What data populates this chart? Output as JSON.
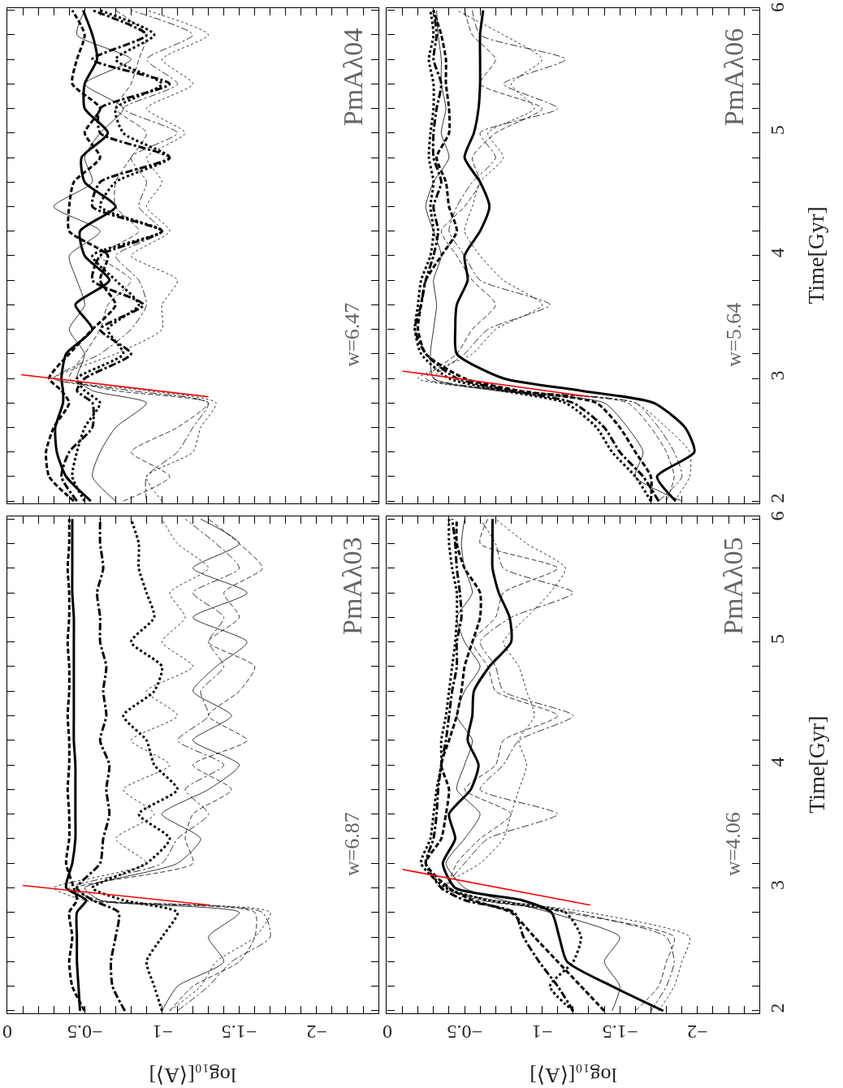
{
  "chart_data": [
    {
      "type": "line",
      "orientation": "horizontal",
      "tick_labels": false,
      "annotations": [
        "PmAλ04",
        "w=6.47"
      ],
      "xlim": [
        0,
        -2.4
      ],
      "ylim": [
        1.98,
        6.02
      ],
      "xticks": [
        {
          "value": 0,
          "label": null
        },
        {
          "value": -0.1,
          "label": null
        },
        {
          "value": -0.2,
          "label": null
        },
        {
          "value": -0.3,
          "label": null
        },
        {
          "value": -0.4,
          "label": null
        },
        {
          "value": -0.5,
          "label": null
        },
        {
          "value": -0.6,
          "label": null
        },
        {
          "value": -0.7,
          "label": null
        },
        {
          "value": -0.8,
          "label": null
        },
        {
          "value": -0.9,
          "label": null
        },
        {
          "value": -1,
          "label": null
        },
        {
          "value": -1.1,
          "label": null
        },
        {
          "value": -1.2,
          "label": null
        },
        {
          "value": -1.3,
          "label": null
        },
        {
          "value": -1.4,
          "label": null
        },
        {
          "value": -1.5,
          "label": null
        },
        {
          "value": -1.6,
          "label": null
        },
        {
          "value": -1.7,
          "label": null
        },
        {
          "value": -1.8,
          "label": null
        },
        {
          "value": -1.9,
          "label": null
        },
        {
          "value": -2,
          "label": null
        },
        {
          "value": -2.1,
          "label": null
        },
        {
          "value": -2.2,
          "label": null
        },
        {
          "value": -2.3,
          "label": null
        }
      ],
      "yticks": [
        2,
        {
          "value": 2.2,
          "label": null
        },
        {
          "value": 2.4,
          "label": null
        },
        {
          "value": 2.6,
          "label": null
        },
        {
          "value": 2.8,
          "label": null
        },
        3,
        {
          "value": 3.2,
          "label": null
        },
        {
          "value": 3.4,
          "label": null
        },
        {
          "value": 3.6,
          "label": null
        },
        {
          "value": 3.8,
          "label": null
        },
        4,
        {
          "value": 4.2,
          "label": null
        },
        {
          "value": 4.4,
          "label": null
        },
        {
          "value": 4.6,
          "label": null
        },
        {
          "value": 4.8,
          "label": null
        },
        5,
        {
          "value": 5.2,
          "label": null
        },
        {
          "value": 5.4,
          "label": null
        },
        {
          "value": 5.6,
          "label": null
        },
        {
          "value": 5.8,
          "label": null
        },
        6
      ],
      "x": [
        2.0,
        2.2,
        2.4,
        2.6,
        2.8,
        2.9,
        3.0,
        3.2,
        3.4,
        3.6,
        3.8,
        4.0,
        4.2,
        4.4,
        4.6,
        4.8,
        5.0,
        5.2,
        5.4,
        5.6,
        5.8,
        6.0
      ],
      "series": [
        {
          "color": "#000000",
          "line_style": "solid",
          "values": [
            -0.54,
            -0.38,
            -0.32,
            -0.31,
            -0.36,
            -0.36,
            -0.35,
            -0.38,
            -0.55,
            -0.44,
            -0.66,
            -0.5,
            -0.47,
            -0.7,
            -0.5,
            -0.48,
            -0.65,
            -0.5,
            -0.5,
            -0.58,
            -0.55,
            -0.49
          ]
        },
        {
          "color": "#000000",
          "line_style": "dashed",
          "values": [
            -0.43,
            -0.27,
            -0.25,
            -0.3,
            -0.4,
            -0.35,
            -0.27,
            -0.4,
            -0.55,
            -0.7,
            -0.6,
            -0.65,
            -0.4,
            -0.4,
            -0.43,
            -0.6,
            -0.5,
            -0.6,
            -0.42,
            -0.45,
            -0.5,
            -0.42
          ]
        },
        {
          "color": "#000000",
          "line_style": "dashdot",
          "values": [
            -0.45,
            -0.35,
            -0.4,
            -0.55,
            -0.55,
            -0.45,
            -0.5,
            -0.8,
            -0.6,
            -0.88,
            -0.55,
            -0.6,
            -1.0,
            -0.55,
            -0.6,
            -1.05,
            -0.6,
            -0.6,
            -1.05,
            -0.55,
            -0.9,
            -0.55
          ]
        },
        {
          "color": "#000000",
          "line_style": "dotted",
          "values": [
            -0.5,
            -0.42,
            -0.45,
            -0.5,
            -0.6,
            -0.5,
            -0.45,
            -0.75,
            -0.65,
            -0.85,
            -0.7,
            -0.55,
            -1.0,
            -0.6,
            -0.7,
            -1.05,
            -0.75,
            -0.7,
            -1.0,
            -0.7,
            -0.95,
            -0.6
          ]
        },
        {
          "color": "#000000",
          "line_style": "solid",
          "values": [
            -0.7,
            -0.55,
            -0.6,
            -0.7,
            -0.9,
            -0.55,
            -0.45,
            -0.5,
            -0.4,
            -0.5,
            -0.45,
            -0.4,
            -0.6,
            -0.3,
            -0.55,
            -0.5,
            -0.6,
            -0.75,
            -0.5,
            -0.8,
            -0.45,
            -0.5
          ]
        },
        {
          "color": "#000000",
          "line_style": "dashed",
          "values": [
            -0.75,
            -1.05,
            -0.8,
            -1.1,
            -1.3,
            -0.7,
            -0.4,
            -0.5,
            -0.6,
            -0.65,
            -0.8,
            -0.6,
            -0.85,
            -0.7,
            -0.7,
            -0.8,
            -0.9,
            -0.7,
            -0.8,
            -0.85,
            -0.9,
            -0.7
          ]
        },
        {
          "color": "#000000",
          "line_style": "dashdot",
          "values": [
            -0.9,
            -0.9,
            -1.1,
            -1.2,
            -1.3,
            -0.8,
            -0.3,
            -0.6,
            -0.8,
            -0.9,
            -0.85,
            -0.7,
            -1.0,
            -0.85,
            -0.9,
            -0.8,
            -1.1,
            -0.75,
            -1.1,
            -0.9,
            -1.2,
            -0.8
          ]
        },
        {
          "color": "#000000",
          "line_style": "dotted",
          "values": [
            -1.0,
            -0.9,
            -1.2,
            -1.25,
            -1.35,
            -0.9,
            -0.3,
            -0.7,
            -1.0,
            -1.0,
            -1.1,
            -0.8,
            -1.05,
            -0.9,
            -1.0,
            -0.9,
            -1.15,
            -0.9,
            -1.2,
            -1.0,
            -1.3,
            -0.9
          ]
        },
        {
          "color": "#ff0000",
          "line_style": "solid",
          "x": [
            2.85,
            3.03
          ],
          "values": [
            -1.3,
            -0.09
          ]
        }
      ]
    },
    {
      "type": "line",
      "orientation": "horizontal",
      "tick_labels": "y",
      "ylabel": "Time[Gyr]",
      "annotations": [
        "PmAλ06",
        "w=5.64"
      ],
      "xlim": [
        0,
        -2.4
      ],
      "ylim": [
        1.98,
        6.02
      ],
      "xticks": [
        {
          "value": 0,
          "label": null
        },
        {
          "value": -0.1,
          "label": null
        },
        {
          "value": -0.2,
          "label": null
        },
        {
          "value": -0.3,
          "label": null
        },
        {
          "value": -0.4,
          "label": null
        },
        {
          "value": -0.5,
          "label": null
        },
        {
          "value": -0.6,
          "label": null
        },
        {
          "value": -0.7,
          "label": null
        },
        {
          "value": -0.8,
          "label": null
        },
        {
          "value": -0.9,
          "label": null
        },
        {
          "value": -1,
          "label": null
        },
        {
          "value": -1.1,
          "label": null
        },
        {
          "value": -1.2,
          "label": null
        },
        {
          "value": -1.3,
          "label": null
        },
        {
          "value": -1.4,
          "label": null
        },
        {
          "value": -1.5,
          "label": null
        },
        {
          "value": -1.6,
          "label": null
        },
        {
          "value": -1.7,
          "label": null
        },
        {
          "value": -1.8,
          "label": null
        },
        {
          "value": -1.9,
          "label": null
        },
        {
          "value": -2,
          "label": null
        },
        {
          "value": -2.1,
          "label": null
        },
        {
          "value": -2.2,
          "label": null
        },
        {
          "value": -2.3,
          "label": null
        }
      ],
      "yticks": [
        2,
        {
          "value": 2.2,
          "label": null
        },
        {
          "value": 2.4,
          "label": null
        },
        {
          "value": 2.6,
          "label": null
        },
        {
          "value": 2.8,
          "label": null
        },
        3,
        {
          "value": 3.2,
          "label": null
        },
        {
          "value": 3.4,
          "label": null
        },
        {
          "value": 3.6,
          "label": null
        },
        {
          "value": 3.8,
          "label": null
        },
        4,
        {
          "value": 4.2,
          "label": null
        },
        {
          "value": 4.4,
          "label": null
        },
        {
          "value": 4.6,
          "label": null
        },
        {
          "value": 4.8,
          "label": null
        },
        5,
        {
          "value": 5.2,
          "label": null
        },
        {
          "value": 5.4,
          "label": null
        },
        {
          "value": 5.6,
          "label": null
        },
        {
          "value": 5.8,
          "label": null
        },
        6
      ],
      "x": [
        2.0,
        2.2,
        2.4,
        2.6,
        2.8,
        2.9,
        3.0,
        3.2,
        3.4,
        3.6,
        3.8,
        4.0,
        4.2,
        4.4,
        4.6,
        4.8,
        5.0,
        5.2,
        5.4,
        5.6,
        5.8,
        6.0
      ],
      "series": [
        {
          "color": "#000000",
          "line_style": "solid",
          "values": [
            -1.86,
            -1.74,
            -1.98,
            -1.92,
            -1.72,
            -1.25,
            -0.75,
            -0.45,
            -0.44,
            -0.45,
            -0.52,
            -0.5,
            -0.6,
            -0.66,
            -0.6,
            -0.5,
            -0.56,
            -0.59,
            -0.6,
            -0.6,
            -0.6,
            -0.62
          ]
        },
        {
          "color": "#000000",
          "line_style": "dashed",
          "values": [
            -1.7,
            -1.7,
            -1.6,
            -1.5,
            -1.35,
            -0.85,
            -0.5,
            -0.25,
            -0.2,
            -0.22,
            -0.25,
            -0.35,
            -0.45,
            -0.4,
            -0.38,
            -0.32,
            -0.4,
            -0.4,
            -0.38,
            -0.38,
            -0.35,
            -0.3
          ]
        },
        {
          "color": "#000000",
          "line_style": "dashdot",
          "values": [
            -1.75,
            -1.65,
            -1.5,
            -1.4,
            -1.2,
            -0.8,
            -0.45,
            -0.25,
            -0.18,
            -0.22,
            -0.25,
            -0.3,
            -0.33,
            -0.3,
            -0.35,
            -0.3,
            -0.3,
            -0.32,
            -0.35,
            -0.3,
            -0.32,
            -0.3
          ]
        },
        {
          "color": "#000000",
          "line_style": "dotted",
          "values": [
            -1.7,
            -1.6,
            -1.45,
            -1.35,
            -1.15,
            -0.75,
            -0.4,
            -0.22,
            -0.18,
            -0.2,
            -0.22,
            -0.28,
            -0.3,
            -0.28,
            -0.3,
            -0.27,
            -0.28,
            -0.3,
            -0.3,
            -0.27,
            -0.3,
            -0.28
          ]
        },
        {
          "color": "#000000",
          "line_style": "solid",
          "values": [
            -1.9,
            -1.6,
            -1.65,
            -1.55,
            -1.4,
            -0.7,
            -0.3,
            -0.28,
            -0.3,
            -0.32,
            -0.3,
            -0.35,
            -0.3,
            -0.25,
            -0.3,
            -0.4,
            -0.35,
            -0.38,
            -0.35,
            -0.35,
            -0.33,
            -0.32
          ]
        },
        {
          "color": "#000000",
          "line_style": "dashed",
          "values": [
            -1.8,
            -1.85,
            -1.8,
            -1.7,
            -1.55,
            -0.75,
            -0.25,
            -0.45,
            -0.55,
            -0.7,
            -0.55,
            -0.45,
            -0.35,
            -0.5,
            -0.6,
            -0.55,
            -0.7,
            -1.0,
            -0.6,
            -0.7,
            -0.55,
            -0.5
          ]
        },
        {
          "color": "#000000",
          "line_style": "dashdot",
          "values": [
            -1.75,
            -1.9,
            -1.85,
            -1.75,
            -1.6,
            -0.8,
            -0.3,
            -0.5,
            -0.65,
            -1.05,
            -0.6,
            -0.5,
            -0.4,
            -0.45,
            -0.55,
            -0.7,
            -0.6,
            -1.1,
            -0.75,
            -1.15,
            -0.6,
            -0.55
          ]
        },
        {
          "color": "#000000",
          "line_style": "dotted",
          "values": [
            -1.85,
            -1.95,
            -1.95,
            -1.8,
            -1.6,
            -0.75,
            -0.2,
            -0.55,
            -0.7,
            -1.0,
            -0.75,
            -0.6,
            -0.5,
            -0.55,
            -0.6,
            -0.75,
            -0.65,
            -0.95,
            -0.8,
            -1.0,
            -0.75,
            -0.45
          ]
        },
        {
          "color": "#ff0000",
          "line_style": "solid",
          "x": [
            2.85,
            3.06
          ],
          "values": [
            -1.31,
            -0.1
          ]
        }
      ]
    },
    {
      "type": "line",
      "orientation": "horizontal",
      "tick_labels": "x",
      "xlabel": "log₁₀[⟨A⟩]",
      "annotations": [
        "PmAλ03",
        "w=6.87"
      ],
      "xlim": [
        0,
        -2.4
      ],
      "ylim": [
        1.98,
        6.02
      ],
      "xticks": [
        0,
        {
          "value": -0.1,
          "label": null
        },
        {
          "value": -0.2,
          "label": null
        },
        {
          "value": -0.3,
          "label": null
        },
        {
          "value": -0.4,
          "label": null
        },
        {
          "value": -0.5,
          "label": "−0.5"
        },
        {
          "value": -0.6,
          "label": null
        },
        {
          "value": -0.7,
          "label": null
        },
        {
          "value": -0.8,
          "label": null
        },
        {
          "value": -0.9,
          "label": null
        },
        {
          "value": -1,
          "label": "−1"
        },
        {
          "value": -1.1,
          "label": null
        },
        {
          "value": -1.2,
          "label": null
        },
        {
          "value": -1.3,
          "label": null
        },
        {
          "value": -1.4,
          "label": null
        },
        {
          "value": -1.5,
          "label": "−1.5"
        },
        {
          "value": -1.6,
          "label": null
        },
        {
          "value": -1.7,
          "label": null
        },
        {
          "value": -1.8,
          "label": null
        },
        {
          "value": -1.9,
          "label": null
        },
        {
          "value": -2,
          "label": "−2"
        },
        {
          "value": -2.1,
          "label": null
        },
        {
          "value": -2.2,
          "label": null
        },
        {
          "value": -2.3,
          "label": null
        }
      ],
      "yticks": [
        2,
        {
          "value": 2.2,
          "label": null
        },
        {
          "value": 2.4,
          "label": null
        },
        {
          "value": 2.6,
          "label": null
        },
        {
          "value": 2.8,
          "label": null
        },
        3,
        {
          "value": 3.2,
          "label": null
        },
        {
          "value": 3.4,
          "label": null
        },
        {
          "value": 3.6,
          "label": null
        },
        {
          "value": 3.8,
          "label": null
        },
        4,
        {
          "value": 4.2,
          "label": null
        },
        {
          "value": 4.4,
          "label": null
        },
        {
          "value": 4.6,
          "label": null
        },
        {
          "value": 4.8,
          "label": null
        },
        5,
        {
          "value": 5.2,
          "label": null
        },
        {
          "value": 5.4,
          "label": null
        },
        {
          "value": 5.6,
          "label": null
        },
        {
          "value": 5.8,
          "label": null
        },
        6
      ],
      "x": [
        2.0,
        2.2,
        2.4,
        2.6,
        2.8,
        2.9,
        3.0,
        3.2,
        3.4,
        3.6,
        3.8,
        4.0,
        4.2,
        4.4,
        4.6,
        4.8,
        5.0,
        5.2,
        5.4,
        5.6,
        5.8,
        6.0
      ],
      "series": [
        {
          "color": "#000000",
          "line_style": "solid",
          "values": [
            -0.47,
            -0.46,
            -0.45,
            -0.45,
            -0.45,
            -0.51,
            -0.38,
            -0.42,
            -0.44,
            -0.44,
            -0.44,
            -0.44,
            -0.43,
            -0.43,
            -0.43,
            -0.43,
            -0.43,
            -0.43,
            -0.42,
            -0.42,
            -0.42,
            -0.42
          ]
        },
        {
          "color": "#000000",
          "line_style": "dashed",
          "values": [
            -0.5,
            -0.42,
            -0.4,
            -0.42,
            -0.4,
            -0.45,
            -0.43,
            -0.38,
            -0.4,
            -0.4,
            -0.39,
            -0.4,
            -0.4,
            -0.39,
            -0.4,
            -0.4,
            -0.39,
            -0.4,
            -0.4,
            -0.39,
            -0.4,
            -0.4
          ]
        },
        {
          "color": "#000000",
          "line_style": "dashdot",
          "values": [
            -0.76,
            -0.68,
            -0.67,
            -0.7,
            -0.72,
            -0.55,
            -0.45,
            -0.6,
            -0.62,
            -0.66,
            -0.64,
            -0.66,
            -0.6,
            -0.64,
            -0.62,
            -0.64,
            -0.6,
            -0.6,
            -0.58,
            -0.62,
            -0.6,
            -0.6
          ]
        },
        {
          "color": "#000000",
          "line_style": "dotted",
          "values": [
            -1.0,
            -0.95,
            -0.9,
            -1.0,
            -1.1,
            -0.75,
            -0.55,
            -0.9,
            -1.05,
            -0.85,
            -1.1,
            -0.95,
            -0.9,
            -0.75,
            -0.95,
            -1.0,
            -0.8,
            -0.95,
            -0.9,
            -0.85,
            -0.85,
            -0.8
          ]
        },
        {
          "color": "#000000",
          "line_style": "solid",
          "values": [
            -1.0,
            -1.1,
            -1.4,
            -1.3,
            -1.5,
            -0.6,
            -0.5,
            -1.1,
            -1.25,
            -1.0,
            -1.3,
            -1.5,
            -1.2,
            -1.45,
            -1.2,
            -1.35,
            -1.55,
            -1.2,
            -1.55,
            -1.2,
            -1.5,
            -1.25
          ]
        },
        {
          "color": "#000000",
          "line_style": "dashed",
          "values": [
            -1.05,
            -1.2,
            -1.5,
            -1.6,
            -1.6,
            -0.55,
            -0.45,
            -1.2,
            -1.15,
            -1.2,
            -1.45,
            -1.2,
            -1.55,
            -1.3,
            -1.5,
            -1.6,
            -1.3,
            -1.5,
            -1.4,
            -1.65,
            -1.5,
            -1.3
          ]
        },
        {
          "color": "#000000",
          "line_style": "dashdot",
          "values": [
            -1.1,
            -1.3,
            -1.45,
            -1.7,
            -1.65,
            -0.6,
            -0.4,
            -1.0,
            -1.1,
            -1.3,
            -1.15,
            -1.4,
            -1.1,
            -1.3,
            -1.25,
            -1.4,
            -1.3,
            -1.4,
            -1.2,
            -1.5,
            -1.35,
            -1.15
          ]
        },
        {
          "color": "#000000",
          "line_style": "dotted",
          "values": [
            -1.05,
            -1.25,
            -1.35,
            -1.6,
            -1.7,
            -0.5,
            -0.3,
            -0.9,
            -0.7,
            -0.95,
            -0.75,
            -1.05,
            -0.8,
            -1.1,
            -0.9,
            -1.2,
            -1.0,
            -1.15,
            -1.05,
            -1.3,
            -1.1,
            -1.0
          ]
        },
        {
          "color": "#ff0000",
          "line_style": "solid",
          "x": [
            2.86,
            3.02
          ],
          "values": [
            -1.31,
            -0.1
          ]
        }
      ]
    },
    {
      "type": "line",
      "orientation": "horizontal",
      "xlabel": "log₁₀[⟨A⟩]",
      "ylabel": "Time[Gyr]",
      "annotations": [
        "PmAλ05",
        "w=4.06"
      ],
      "xlim": [
        0,
        -2.4
      ],
      "ylim": [
        1.98,
        6.02
      ],
      "xticks": [
        0,
        {
          "value": -0.1,
          "label": null
        },
        {
          "value": -0.2,
          "label": null
        },
        {
          "value": -0.3,
          "label": null
        },
        {
          "value": -0.4,
          "label": null
        },
        {
          "value": -0.5,
          "label": "−0.5"
        },
        {
          "value": -0.6,
          "label": null
        },
        {
          "value": -0.7,
          "label": null
        },
        {
          "value": -0.8,
          "label": null
        },
        {
          "value": -0.9,
          "label": null
        },
        {
          "value": -1,
          "label": "−1"
        },
        {
          "value": -1.1,
          "label": null
        },
        {
          "value": -1.2,
          "label": null
        },
        {
          "value": -1.3,
          "label": null
        },
        {
          "value": -1.4,
          "label": null
        },
        {
          "value": -1.5,
          "label": "−1.5"
        },
        {
          "value": -1.6,
          "label": null
        },
        {
          "value": -1.7,
          "label": null
        },
        {
          "value": -1.8,
          "label": null
        },
        {
          "value": -1.9,
          "label": null
        },
        {
          "value": -2,
          "label": "−2"
        },
        {
          "value": -2.1,
          "label": null
        },
        {
          "value": -2.2,
          "label": null
        },
        {
          "value": -2.3,
          "label": null
        }
      ],
      "yticks": [
        2,
        {
          "value": 2.2,
          "label": null
        },
        {
          "value": 2.4,
          "label": null
        },
        {
          "value": 2.6,
          "label": null
        },
        {
          "value": 2.8,
          "label": null
        },
        3,
        {
          "value": 3.2,
          "label": null
        },
        {
          "value": 3.4,
          "label": null
        },
        {
          "value": 3.6,
          "label": null
        },
        {
          "value": 3.8,
          "label": null
        },
        4,
        {
          "value": 4.2,
          "label": null
        },
        {
          "value": 4.4,
          "label": null
        },
        {
          "value": 4.6,
          "label": null
        },
        {
          "value": 4.8,
          "label": null
        },
        5,
        {
          "value": 5.2,
          "label": null
        },
        {
          "value": 5.4,
          "label": null
        },
        {
          "value": 5.6,
          "label": null
        },
        {
          "value": 5.8,
          "label": null
        },
        6
      ],
      "x": [
        2.0,
        2.2,
        2.4,
        2.6,
        2.8,
        2.9,
        3.0,
        3.2,
        3.4,
        3.6,
        3.8,
        4.0,
        4.2,
        4.4,
        4.6,
        4.8,
        5.0,
        5.2,
        5.4,
        5.6,
        5.8,
        6.0
      ],
      "series": [
        {
          "color": "#000000",
          "line_style": "solid",
          "values": [
            -1.78,
            -1.45,
            -1.16,
            -1.11,
            -1.06,
            -0.87,
            -0.44,
            -0.36,
            -0.44,
            -0.4,
            -0.54,
            -0.59,
            -0.52,
            -0.55,
            -0.56,
            -0.66,
            -0.8,
            -0.79,
            -0.72,
            -0.68,
            -0.68,
            -0.68
          ]
        },
        {
          "color": "#000000",
          "line_style": "dashed",
          "values": [
            -1.4,
            -1.25,
            -1.1,
            -0.95,
            -0.8,
            -0.55,
            -0.4,
            -0.25,
            -0.35,
            -0.38,
            -0.4,
            -0.35,
            -0.4,
            -0.45,
            -0.48,
            -0.5,
            -0.55,
            -0.6,
            -0.6,
            -0.5,
            -0.45,
            -0.45
          ]
        },
        {
          "color": "#000000",
          "line_style": "dashdot",
          "values": [
            -1.2,
            -1.1,
            -0.98,
            -0.88,
            -0.82,
            -0.5,
            -0.35,
            -0.25,
            -0.3,
            -0.32,
            -0.33,
            -0.35,
            -0.38,
            -0.4,
            -0.42,
            -0.45,
            -0.45,
            -0.48,
            -0.47,
            -0.45,
            -0.44,
            -0.42
          ]
        },
        {
          "color": "#000000",
          "line_style": "dotted",
          "values": [
            -1.2,
            -1.05,
            -1.2,
            -1.25,
            -1.15,
            -0.65,
            -0.38,
            -0.22,
            -0.28,
            -0.3,
            -0.32,
            -0.35,
            -0.35,
            -0.38,
            -0.4,
            -0.42,
            -0.44,
            -0.45,
            -0.45,
            -0.42,
            -0.4,
            -0.4
          ]
        },
        {
          "color": "#000000",
          "line_style": "solid",
          "values": [
            -1.45,
            -1.5,
            -1.4,
            -1.5,
            -1.05,
            -0.75,
            -0.5,
            -0.38,
            -0.5,
            -0.6,
            -0.45,
            -0.5,
            -0.55,
            -0.45,
            -0.5,
            -0.6,
            -0.5,
            -0.45,
            -0.55,
            -0.5,
            -0.48,
            -0.5
          ]
        },
        {
          "color": "#000000",
          "line_style": "dashed",
          "values": [
            -1.6,
            -1.75,
            -1.8,
            -1.85,
            -1.15,
            -0.65,
            -0.4,
            -0.45,
            -0.6,
            -0.8,
            -0.5,
            -0.7,
            -0.75,
            -1.1,
            -0.7,
            -0.65,
            -0.55,
            -0.7,
            -0.75,
            -1.1,
            -0.6,
            -0.65
          ]
        },
        {
          "color": "#000000",
          "line_style": "dashdot",
          "values": [
            -1.7,
            -1.8,
            -1.85,
            -1.8,
            -1.2,
            -0.6,
            -0.38,
            -0.5,
            -0.65,
            -1.1,
            -0.6,
            -0.75,
            -0.85,
            -1.2,
            -0.75,
            -0.7,
            -0.6,
            -0.8,
            -1.2,
            -0.75,
            -0.7,
            -0.6
          ]
        },
        {
          "color": "#000000",
          "line_style": "dotted",
          "values": [
            -1.75,
            -1.85,
            -1.9,
            -1.95,
            -1.3,
            -0.7,
            -0.35,
            -0.6,
            -0.75,
            -0.8,
            -0.85,
            -0.9,
            -0.85,
            -0.95,
            -0.9,
            -0.85,
            -0.75,
            -0.9,
            -1.05,
            -1.15,
            -0.9,
            -0.7
          ]
        },
        {
          "color": "#ff0000",
          "line_style": "solid",
          "x": [
            2.86,
            3.15
          ],
          "values": [
            -1.31,
            -0.1
          ]
        }
      ]
    }
  ]
}
